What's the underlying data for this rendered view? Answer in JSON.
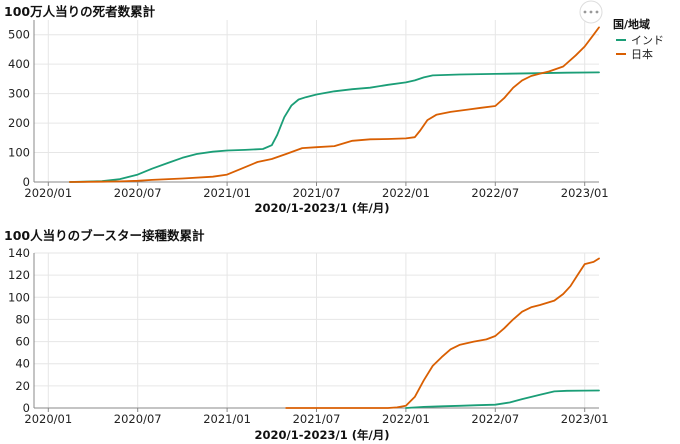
{
  "legend": {
    "title": "国/地域",
    "items": [
      {
        "label": "インド",
        "color": "#1b9e77"
      },
      {
        "label": "日本",
        "color": "#d95f02"
      }
    ]
  },
  "menu_icon": "more-horizontal-icon",
  "chart_data": [
    {
      "type": "line",
      "title": "100万人当りの死者数累計",
      "xlabel": "2020/1-2023/1 (年/月)",
      "ylabel": "",
      "ylim": [
        0,
        550
      ],
      "yticks": [
        0,
        100,
        200,
        300,
        400,
        500
      ],
      "xlim": [
        2019.92,
        2023.08
      ],
      "xticks": [
        {
          "x": 2020.0,
          "label": "2020/01"
        },
        {
          "x": 2020.5,
          "label": "2020/07"
        },
        {
          "x": 2021.0,
          "label": "2021/01"
        },
        {
          "x": 2021.5,
          "label": "2021/07"
        },
        {
          "x": 2022.0,
          "label": "2022/01"
        },
        {
          "x": 2022.5,
          "label": "2022/07"
        },
        {
          "x": 2023.0,
          "label": "2023/01"
        }
      ],
      "series": [
        {
          "name": "インド",
          "color": "#1b9e77",
          "x": [
            2020.12,
            2020.2,
            2020.3,
            2020.4,
            2020.5,
            2020.58,
            2020.67,
            2020.75,
            2020.83,
            2020.92,
            2021.0,
            2021.1,
            2021.2,
            2021.25,
            2021.28,
            2021.32,
            2021.36,
            2021.4,
            2021.44,
            2021.5,
            2021.6,
            2021.7,
            2021.8,
            2021.9,
            2022.0,
            2022.05,
            2022.1,
            2022.15,
            2022.3,
            2022.5,
            2022.7,
            2022.9,
            2023.08
          ],
          "values": [
            0,
            1,
            3,
            10,
            25,
            45,
            65,
            82,
            95,
            103,
            107,
            109,
            112,
            125,
            160,
            220,
            260,
            280,
            288,
            297,
            308,
            315,
            320,
            330,
            338,
            345,
            355,
            362,
            365,
            367,
            369,
            371,
            372
          ]
        },
        {
          "name": "日本",
          "color": "#d95f02",
          "x": [
            2020.12,
            2020.3,
            2020.4,
            2020.5,
            2020.58,
            2020.75,
            2020.92,
            2021.0,
            2021.08,
            2021.17,
            2021.25,
            2021.33,
            2021.42,
            2021.5,
            2021.6,
            2021.7,
            2021.8,
            2021.9,
            2022.0,
            2022.05,
            2022.08,
            2022.12,
            2022.17,
            2022.25,
            2022.35,
            2022.42,
            2022.5,
            2022.55,
            2022.6,
            2022.65,
            2022.7,
            2022.75,
            2022.8,
            2022.88,
            2022.95,
            2023.0,
            2023.05,
            2023.08
          ],
          "values": [
            0,
            1,
            2,
            4,
            7,
            12,
            18,
            25,
            45,
            68,
            78,
            95,
            115,
            118,
            122,
            140,
            145,
            146,
            148,
            152,
            175,
            210,
            228,
            238,
            246,
            252,
            258,
            285,
            320,
            345,
            360,
            368,
            375,
            392,
            430,
            460,
            500,
            525
          ]
        }
      ]
    },
    {
      "type": "line",
      "title": "100人当りのブースター接種数累計",
      "xlabel": "2020/1-2023/1 (年/月)",
      "ylabel": "",
      "ylim": [
        0,
        140
      ],
      "yticks": [
        0,
        20,
        40,
        60,
        80,
        100,
        120,
        140
      ],
      "xlim": [
        2019.92,
        2023.08
      ],
      "xticks": [
        {
          "x": 2020.0,
          "label": "2020/01"
        },
        {
          "x": 2020.5,
          "label": "2020/07"
        },
        {
          "x": 2021.0,
          "label": "2021/01"
        },
        {
          "x": 2021.5,
          "label": "2021/07"
        },
        {
          "x": 2022.0,
          "label": "2022/01"
        },
        {
          "x": 2022.5,
          "label": "2022/07"
        },
        {
          "x": 2023.0,
          "label": "2023/01"
        }
      ],
      "series": [
        {
          "name": "インド",
          "color": "#1b9e77",
          "x": [
            2022.0,
            2022.1,
            2022.2,
            2022.3,
            2022.4,
            2022.5,
            2022.58,
            2022.65,
            2022.75,
            2022.83,
            2022.9,
            2023.0,
            2023.08
          ],
          "values": [
            0,
            1,
            1.5,
            2,
            2.5,
            3,
            5,
            8,
            12,
            15,
            15.5,
            15.7,
            15.8
          ]
        },
        {
          "name": "日本",
          "color": "#d95f02",
          "x": [
            2021.33,
            2021.5,
            2021.7,
            2021.9,
            2021.95,
            2022.0,
            2022.05,
            2022.1,
            2022.15,
            2022.2,
            2022.25,
            2022.3,
            2022.38,
            2022.45,
            2022.5,
            2022.55,
            2022.6,
            2022.65,
            2022.7,
            2022.75,
            2022.83,
            2022.88,
            2022.92,
            2022.96,
            2023.0,
            2023.05,
            2023.08
          ],
          "values": [
            0,
            0,
            0,
            0,
            0.5,
            2,
            10,
            25,
            38,
            46,
            53,
            57,
            60,
            62,
            65,
            72,
            80,
            87,
            91,
            93,
            97,
            103,
            110,
            120,
            130,
            132,
            135
          ]
        }
      ]
    }
  ]
}
